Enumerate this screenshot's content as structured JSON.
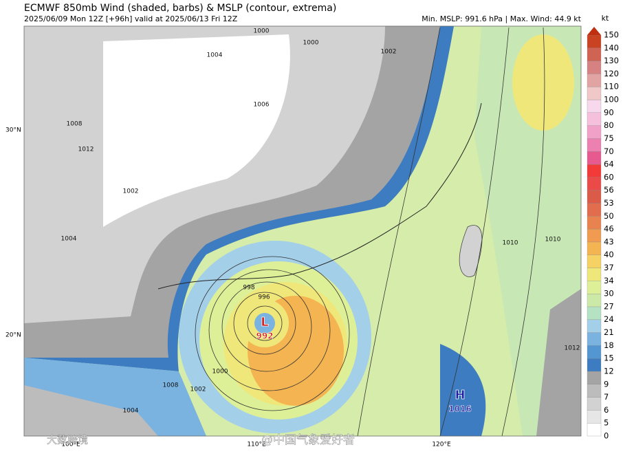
{
  "header": {
    "title": "ECMWF 850mb Wind (shaded, barbs) & MSLP (contour, extrema)",
    "subtitle": "2025/06/09 Mon 12Z [+96h] valid at 2025/06/13 Fri 12Z",
    "stats": "Min. MSLP: 991.6 hPa | Max. Wind: 44.9 kt"
  },
  "colorbar": {
    "unit": "kt",
    "levels": [
      0,
      5,
      6,
      7,
      9,
      12,
      15,
      18,
      21,
      24,
      27,
      30,
      34,
      37,
      40,
      43,
      46,
      50,
      53,
      56,
      60,
      64,
      70,
      75,
      80,
      90,
      100,
      110,
      120,
      130,
      140,
      150
    ],
    "colors": [
      "#ffffff",
      "#e6e6e6",
      "#d2d2d2",
      "#bcbcbc",
      "#a4a4a4",
      "#3d7cc0",
      "#5296d2",
      "#7ab2e0",
      "#a3cfe9",
      "#b4e2c2",
      "#cde9a8",
      "#def097",
      "#efe77a",
      "#f4d263",
      "#f4b452",
      "#f09b50",
      "#e8834f",
      "#e16c4e",
      "#d95b48",
      "#ea4a48",
      "#f23a38",
      "#e65a8f",
      "#ec80b0",
      "#f1a0c8",
      "#f5c0dc",
      "#f8d8ec",
      "#f0c8c8",
      "#e2a3a3",
      "#d78282",
      "#d06353",
      "#c94322"
    ],
    "extend_color": "#c03010"
  },
  "axes": {
    "lat_labels": [
      "30°N",
      "20°N"
    ],
    "lon_labels": [
      "100°E",
      "110°E",
      "120°E"
    ]
  },
  "extrema": [
    {
      "symbol": "L",
      "value": 992
    },
    {
      "symbol": "H",
      "value": 1016
    }
  ],
  "contour_labels": [
    "1000",
    "1004",
    "1000",
    "1002",
    "1008",
    "1012",
    "1004",
    "1002",
    "998",
    "996",
    "1000",
    "1002",
    "1008",
    "1010",
    "1010",
    "1012",
    "1004",
    "1006"
  ],
  "watermarks": [
    "大数跨境",
    "@中国气象爱好者"
  ]
}
